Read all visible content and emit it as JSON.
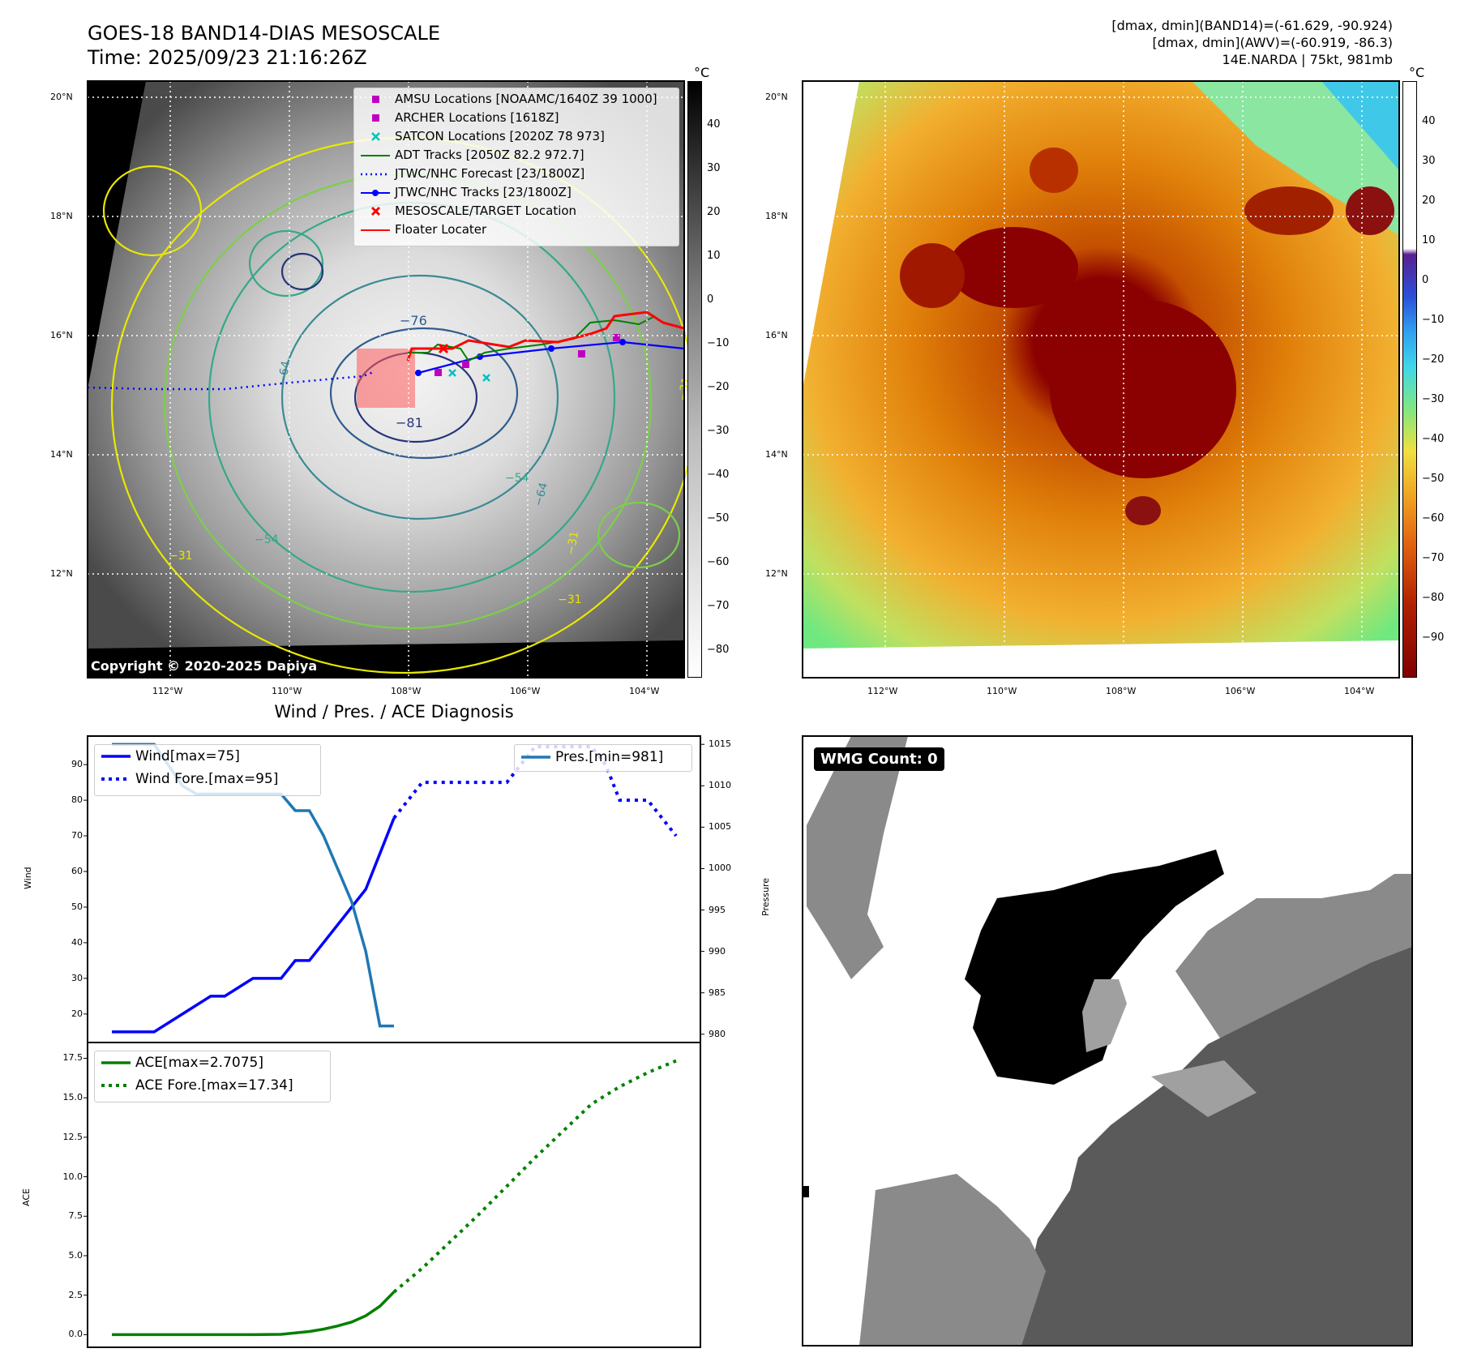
{
  "header": {
    "title_line1": "GOES-18 BAND14-DIAS MESOSCALE",
    "title_line2": "Time: 2025/09/23 21:16:26Z",
    "info_line1": "[dmax, dmin](BAND14)=(-61.629, -90.924)",
    "info_line2": "[dmax, dmin](AWV)=(-60.919, -86.3)",
    "info_line3": "14E.NARDA | 75kt, 981mb"
  },
  "map_common": {
    "lat_labels": [
      "20°N",
      "18°N",
      "16°N",
      "14°N",
      "12°N"
    ],
    "lon_labels": [
      "112°W",
      "110°W",
      "108°W",
      "106°W",
      "104°W"
    ],
    "copyright": "Copyright © 2020-2025 Dapiya"
  },
  "left_map": {
    "colorbar_unit": "°C",
    "colorbar_ticks": [
      "40",
      "30",
      "20",
      "10",
      "0",
      "−10",
      "−20",
      "−30",
      "−40",
      "−50",
      "−60",
      "−70",
      "−80"
    ],
    "contour_labels": [
      "−76",
      "−81",
      "−64",
      "−54",
      "−31",
      "−31",
      "−31",
      "−64",
      "−54",
      "−31"
    ],
    "legend": [
      {
        "label": "AMSU Locations [NOAAMC/1640Z 39 1000]",
        "symbol": "square",
        "color": "#c000c0"
      },
      {
        "label": "ARCHER Locations [1618Z]",
        "symbol": "square",
        "color": "#c000c0"
      },
      {
        "label": "SATCON Locations [2020Z 78 973]",
        "symbol": "x",
        "color": "#00c0c0"
      },
      {
        "label": "ADT Tracks [2050Z 82.2 972.7]",
        "symbol": "line",
        "color": "#008000"
      },
      {
        "label": "JTWC/NHC Forecast [23/1800Z]",
        "symbol": "dotted",
        "color": "#0000ff"
      },
      {
        "label": "JTWC/NHC Tracks [23/1800Z]",
        "symbol": "line-dot",
        "color": "#0000ff"
      },
      {
        "label": "MESOSCALE/TARGET Location",
        "symbol": "x",
        "color": "#ff0000"
      },
      {
        "label": "Floater Locater",
        "symbol": "line",
        "color": "#ff0000"
      }
    ]
  },
  "right_map": {
    "colorbar_unit": "°C",
    "colorbar_ticks": [
      "40",
      "30",
      "20",
      "10",
      "0",
      "−10",
      "−20",
      "−30",
      "−40",
      "−50",
      "−60",
      "−70",
      "−80",
      "−90"
    ]
  },
  "wmg_panel": {
    "badge": "WMG Count: 0"
  },
  "chart_data": [
    {
      "type": "line",
      "title": "Wind / Pres. / ACE Diagnosis",
      "ylabel": "Wind",
      "y2label": "Pressure",
      "ylim": [
        12,
        98
      ],
      "y2lim": [
        979,
        1016
      ],
      "yticks": [
        "90",
        "80",
        "70",
        "60",
        "50",
        "40",
        "30",
        "20"
      ],
      "y2ticks": [
        "1015",
        "1010",
        "1005",
        "1000",
        "995",
        "990",
        "985",
        "980"
      ],
      "legend_left": [
        "Wind[max=75]",
        "Wind Fore.[max=95]"
      ],
      "legend_right": [
        "Pres.[min=981]"
      ],
      "x": [
        0,
        1,
        2,
        3,
        4,
        5,
        6,
        7,
        8,
        9,
        10,
        11,
        12,
        13,
        14,
        15,
        16,
        17,
        18,
        19,
        20,
        21,
        22,
        23,
        24,
        25,
        26,
        27,
        28,
        29,
        30,
        31,
        32,
        33,
        34,
        35,
        36,
        37,
        38,
        39,
        40
      ],
      "series": [
        {
          "name": "Wind[max=75]",
          "color": "#0000ff",
          "style": "solid",
          "axis": "left",
          "x": [
            0,
            3,
            5,
            7,
            8,
            10,
            11,
            12,
            13,
            14,
            15,
            17,
            18,
            19,
            20
          ],
          "values": [
            15,
            15,
            20,
            25,
            25,
            30,
            30,
            30,
            35,
            35,
            40,
            50,
            55,
            65,
            75
          ]
        },
        {
          "name": "Wind Fore.[max=95]",
          "color": "#0000ff",
          "style": "dotted",
          "axis": "left",
          "x": [
            20,
            21,
            22,
            27,
            28,
            29,
            30,
            31,
            32,
            33,
            34,
            35,
            36,
            37,
            38,
            39,
            40
          ],
          "values": [
            75,
            80,
            85,
            85,
            85,
            90,
            95,
            95,
            95,
            95,
            95,
            90,
            80,
            80,
            80,
            75,
            70
          ]
        },
        {
          "name": "Pres.[min=981]",
          "color": "#1f77b4",
          "style": "solid",
          "axis": "right",
          "x": [
            0,
            3,
            5,
            6,
            7,
            8,
            9,
            10,
            11,
            12,
            13,
            14,
            15,
            16,
            17,
            18,
            19,
            20
          ],
          "values": [
            1015,
            1015,
            1010,
            1009,
            1009,
            1009,
            1009,
            1009,
            1009,
            1009,
            1007,
            1007,
            1004,
            1000,
            996,
            990,
            981,
            981
          ]
        }
      ]
    },
    {
      "type": "line",
      "ylabel": "ACE",
      "ylim": [
        -0.8,
        18.5
      ],
      "yticks": [
        "17.5",
        "15.0",
        "12.5",
        "10.0",
        "7.5",
        "5.0",
        "2.5",
        "0.0"
      ],
      "legend": [
        "ACE[max=2.7075]",
        "ACE Fore.[max=17.34]"
      ],
      "series": [
        {
          "name": "ACE[max=2.7075]",
          "color": "#008000",
          "style": "solid",
          "x": [
            0,
            4,
            8,
            10,
            12,
            14,
            15,
            16,
            17,
            18,
            19,
            20
          ],
          "values": [
            0,
            0,
            0,
            0,
            0.02,
            0.2,
            0.35,
            0.55,
            0.8,
            1.2,
            1.8,
            2.7075
          ]
        },
        {
          "name": "ACE Fore.[max=17.34]",
          "color": "#008000",
          "style": "dotted",
          "x": [
            20,
            22,
            24,
            26,
            28,
            30,
            32,
            34,
            36,
            38,
            40
          ],
          "values": [
            2.7075,
            4.2,
            5.9,
            7.6,
            9.4,
            11.2,
            12.9,
            14.6,
            15.7,
            16.6,
            17.34
          ]
        }
      ]
    }
  ]
}
